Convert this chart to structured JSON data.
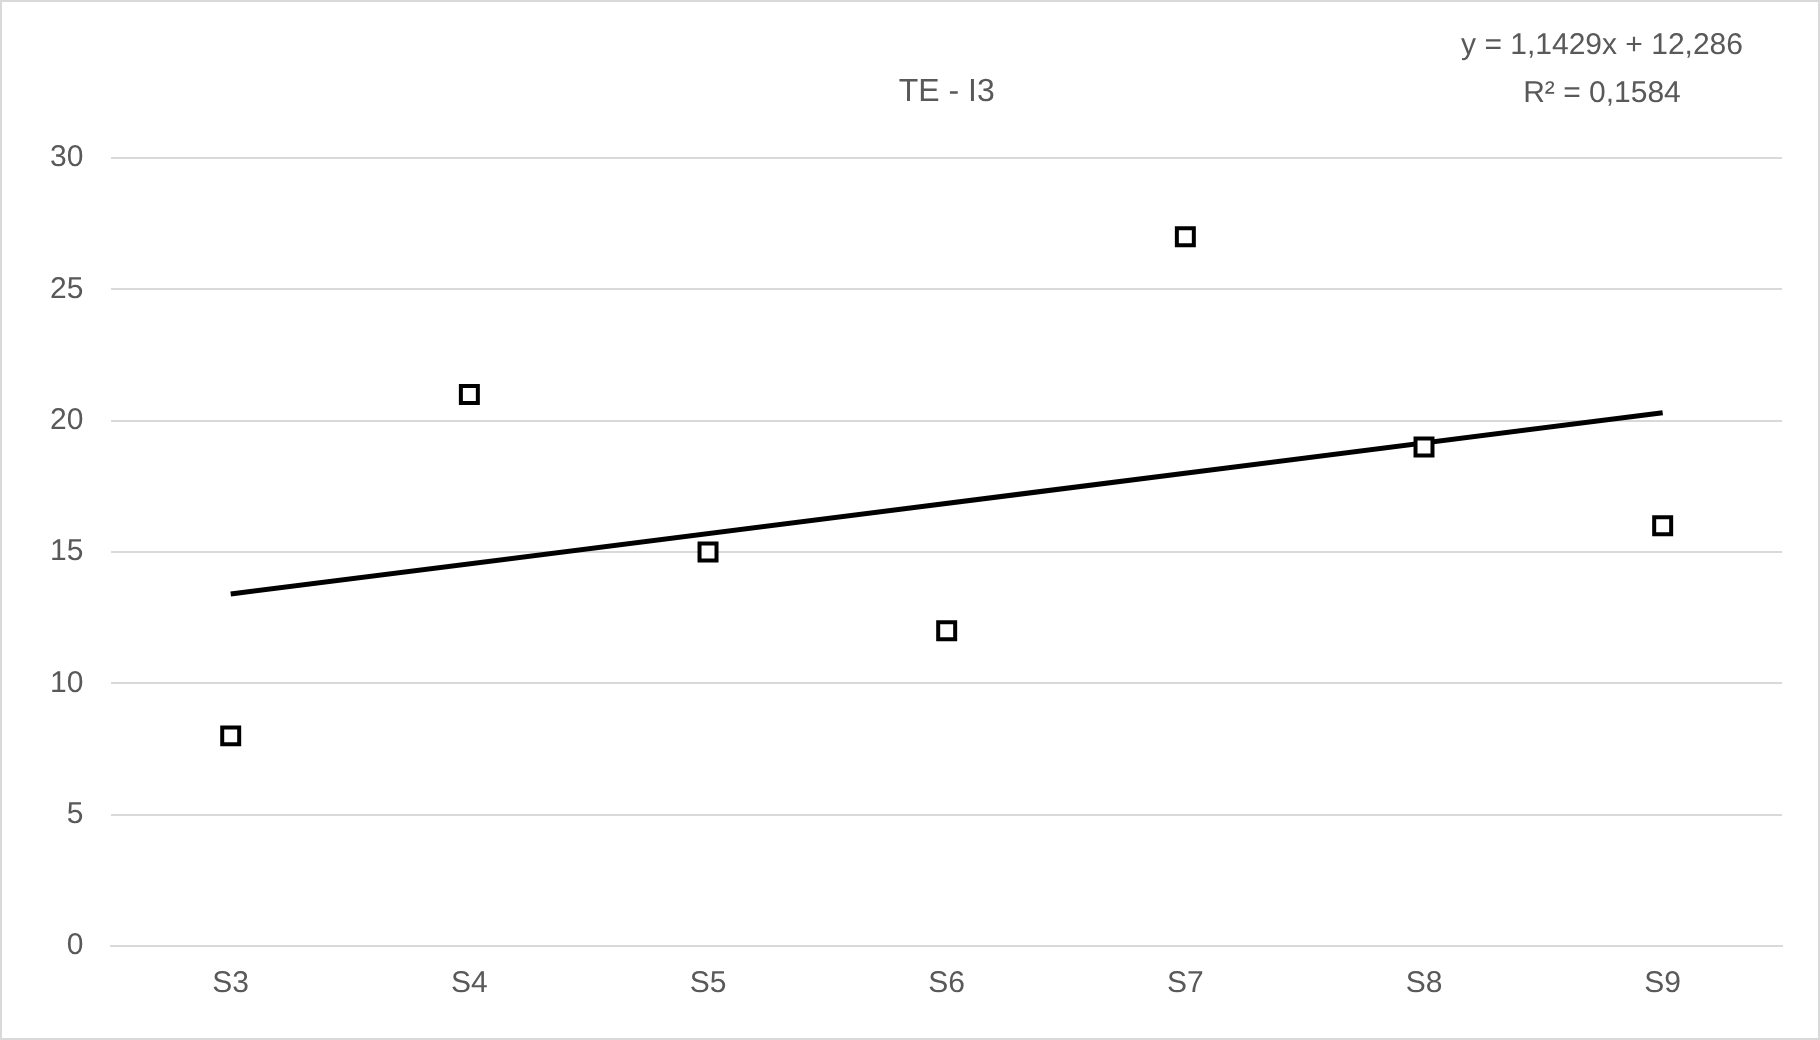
{
  "chart_data": {
    "type": "scatter",
    "title": "TE - I3",
    "categories": [
      "S3",
      "S4",
      "S5",
      "S6",
      "S7",
      "S8",
      "S9"
    ],
    "series": [
      {
        "color": "#000000",
        "marker": "square",
        "values": [
          8,
          21,
          15,
          12,
          27,
          19,
          16
        ]
      },
      {
        "type": "line",
        "color": "#000000",
        "x": [
          "S3",
          "S9"
        ],
        "values": [
          13.4,
          20.3
        ]
      }
    ],
    "ylim": [
      0,
      30
    ],
    "yticks": [
      0,
      5,
      10,
      15,
      20,
      25,
      30
    ],
    "grid": "y",
    "legend": false,
    "annotations": [
      "y = 1,1429x + 12,286",
      "R² = 0,1584"
    ]
  }
}
